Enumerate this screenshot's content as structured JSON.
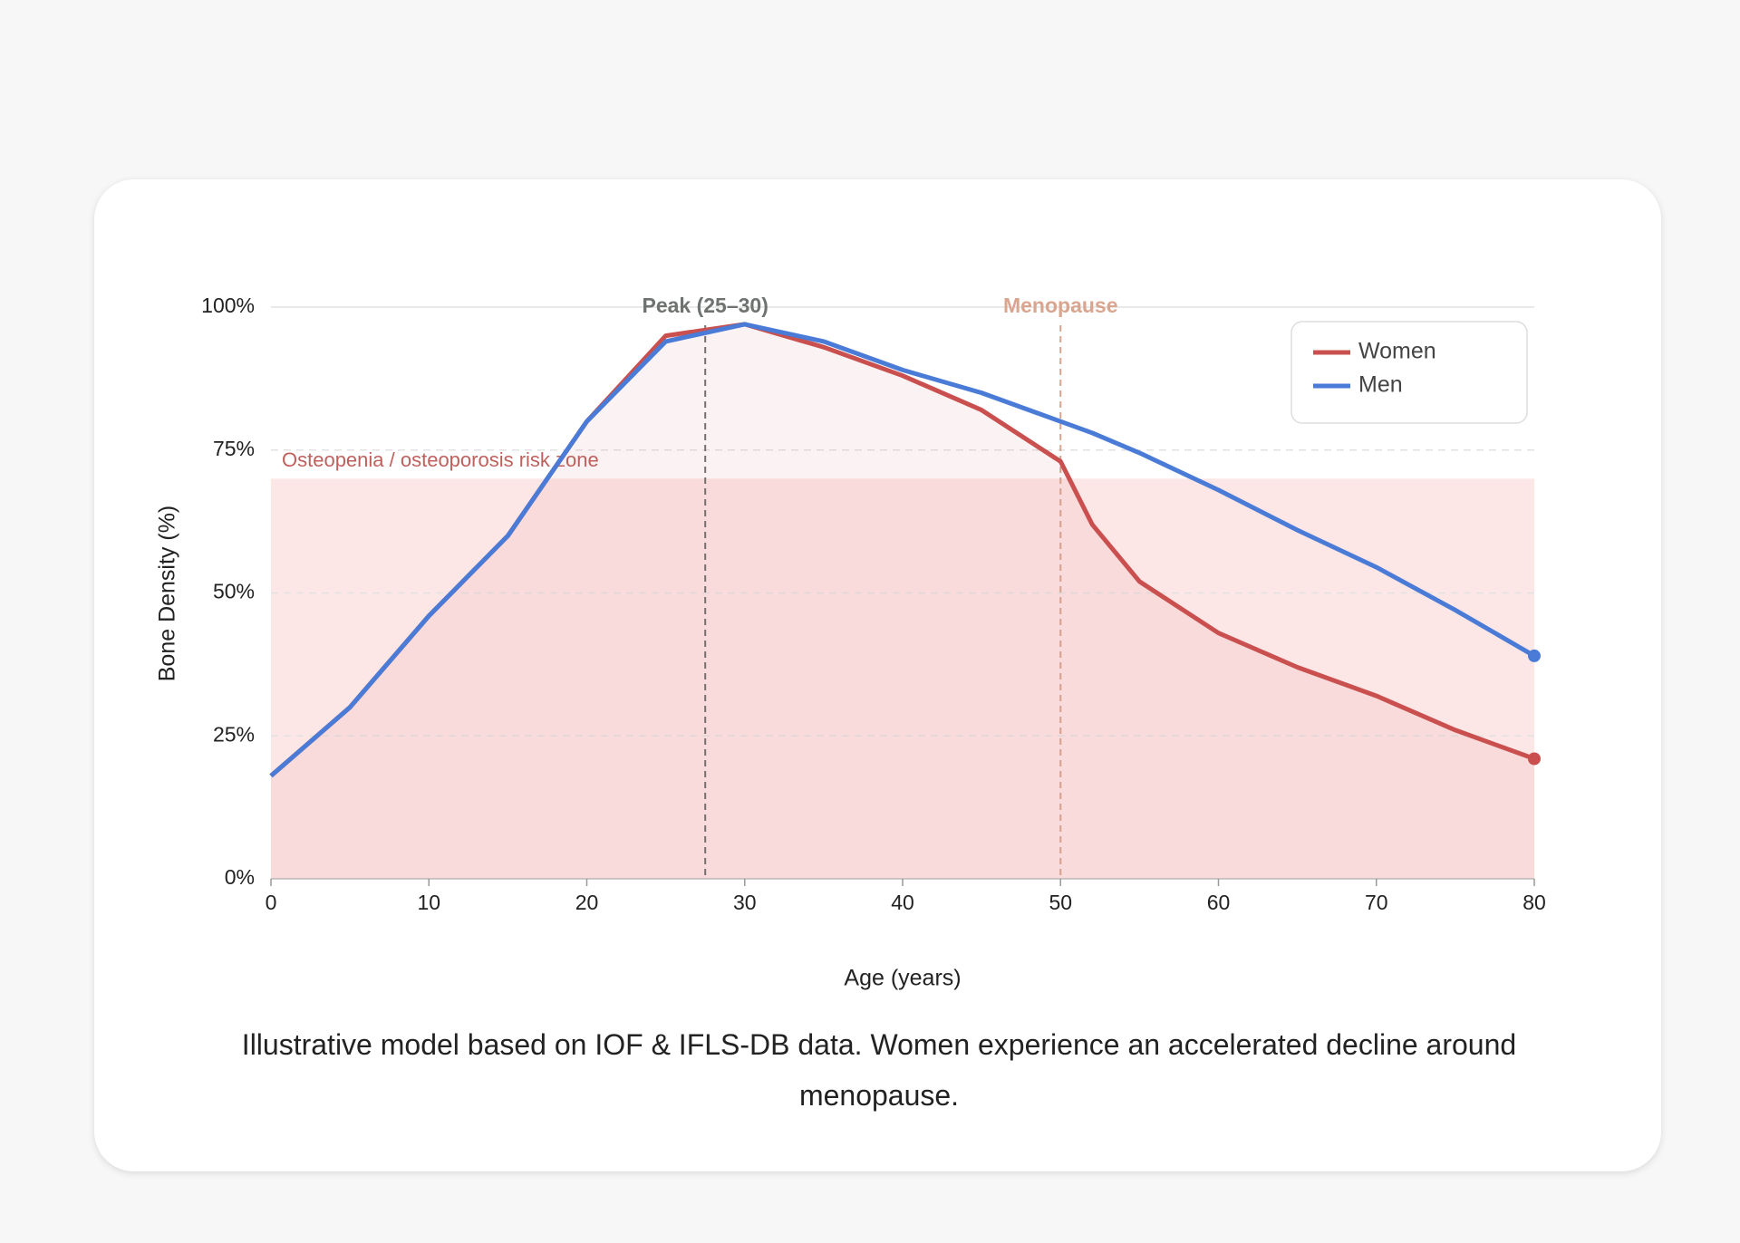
{
  "chart_data": {
    "type": "line",
    "xlabel": "Age (years)",
    "ylabel": "Bone Density (%)",
    "x": [
      0,
      5,
      10,
      15,
      20,
      25,
      30,
      35,
      40,
      45,
      50,
      52,
      55,
      60,
      65,
      70,
      75,
      80
    ],
    "series": [
      {
        "name": "Women",
        "color": "#c9504f",
        "values": [
          18,
          30,
          46,
          60,
          80,
          95,
          97,
          93,
          88,
          82,
          73,
          62,
          52,
          43,
          37,
          32,
          26,
          21
        ]
      },
      {
        "name": "Men",
        "color": "#4a7bd6",
        "values": [
          18,
          30,
          46,
          60,
          80,
          94,
          97,
          94,
          89,
          85,
          80,
          78,
          74.5,
          68,
          61,
          54.5,
          47,
          39
        ]
      }
    ],
    "xlim": [
      0,
      80
    ],
    "ylim": [
      0,
      100
    ],
    "xticks": [
      0,
      10,
      20,
      30,
      40,
      50,
      60,
      70,
      80
    ],
    "yticks": [
      {
        "value": 0,
        "label": "0%"
      },
      {
        "value": 25,
        "label": "25%"
      },
      {
        "value": 50,
        "label": "50%"
      },
      {
        "value": 75,
        "label": "75%"
      },
      {
        "value": 100,
        "label": "100%"
      }
    ],
    "grid": true,
    "legend": "upper right",
    "risk_zone": {
      "label": "Osteopenia / osteoporosis risk zone",
      "range": [
        0,
        70
      ],
      "color": "#fde6e6"
    },
    "annotations": [
      {
        "x": 27.5,
        "label": "Peak (25–30)",
        "color": "#6f7370"
      },
      {
        "x": 50,
        "label": "Menopause",
        "color": "#d9a58f"
      }
    ],
    "caption": "Illustrative model based on IOF & IFLS-DB data. Women experience an accelerated decline around menopause."
  }
}
